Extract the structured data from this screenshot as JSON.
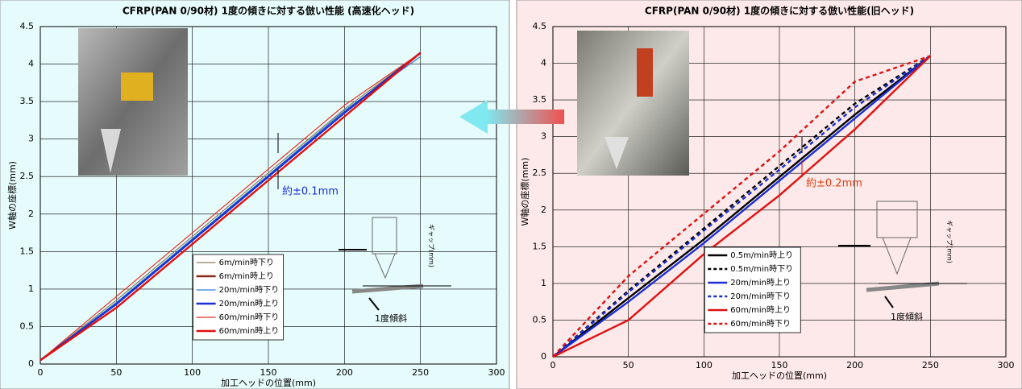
{
  "chart_data": [
    {
      "type": "line",
      "title": "CFRP(PAN 0/90材) 1度の傾きに対する倣い性能 (高速化ヘッド)",
      "ylabel": "W軸の座標(mm)",
      "xlabel": "加工ヘッドの位置(mm)",
      "background": "#e6fbfb",
      "grid": true,
      "legend": "lower center",
      "xlim": [
        0,
        300
      ],
      "xticks": [
        0,
        50,
        100,
        150,
        200,
        250,
        300
      ],
      "ylim": [
        0,
        4.5
      ],
      "yticks": [
        0,
        0.5,
        1,
        1.5,
        2,
        2.5,
        3,
        3.5,
        4,
        4.5
      ],
      "x": [
        0,
        50,
        100,
        150,
        200,
        250
      ],
      "series": [
        {
          "name": "6m/min時下り",
          "color": "#8c7f5a",
          "line_weight": "thin",
          "line_style": "solid",
          "values": [
            0.05,
            0.85,
            1.7,
            2.55,
            3.4,
            4.15
          ]
        },
        {
          "name": "6m/min時上り",
          "color": "#8b2a1a",
          "line_weight": "bold",
          "line_style": "solid",
          "values": [
            0.05,
            0.8,
            1.65,
            2.5,
            3.35,
            4.15
          ]
        },
        {
          "name": "20m/min時下り",
          "color": "#2f7fe0",
          "line_weight": "thin",
          "line_style": "solid",
          "values": [
            0.05,
            0.82,
            1.67,
            2.52,
            3.38,
            4.1
          ]
        },
        {
          "name": "20m/min時上り",
          "color": "#1a2fd0",
          "line_weight": "bold",
          "line_style": "solid",
          "values": [
            0.05,
            0.8,
            1.65,
            2.5,
            3.35,
            4.15
          ]
        },
        {
          "name": "60m/min時下り",
          "color": "#e03020",
          "line_weight": "thin",
          "line_style": "solid",
          "values": [
            0.05,
            0.9,
            1.75,
            2.6,
            3.45,
            4.15
          ]
        },
        {
          "name": "60m/min時上り",
          "color": "#e01010",
          "line_weight": "bold",
          "line_style": "solid",
          "values": [
            0.05,
            0.75,
            1.6,
            2.45,
            3.3,
            4.15
          ]
        }
      ],
      "annotations": [
        "約±0.1mm",
        "ギャップ(mm)",
        "1度傾斜"
      ]
    },
    {
      "type": "line",
      "title": "CFRP(PAN 0/90材) 1度の傾きに対する倣い性能(旧ヘッド)",
      "ylabel": "W軸の座標(mm)",
      "xlabel": "加工ヘッドの位置(mm)",
      "background": "#fde9e9",
      "grid": true,
      "legend": "lower center",
      "xlim": [
        0,
        300
      ],
      "xticks": [
        0,
        50,
        100,
        150,
        200,
        250,
        300
      ],
      "ylim": [
        0,
        4.5
      ],
      "yticks": [
        0,
        0.5,
        1,
        1.5,
        2,
        2.5,
        3,
        3.5,
        4,
        4.5
      ],
      "x": [
        0,
        50,
        100,
        150,
        200,
        250
      ],
      "series": [
        {
          "name": "0.5m/min時上り",
          "color": "#000000",
          "line_weight": "bold",
          "line_style": "solid",
          "values": [
            0,
            0.8,
            1.6,
            2.45,
            3.3,
            4.1
          ]
        },
        {
          "name": "0.5m/min時下り",
          "color": "#000000",
          "line_weight": "bold",
          "line_style": "dashed",
          "values": [
            0,
            0.9,
            1.75,
            2.6,
            3.45,
            4.1
          ]
        },
        {
          "name": "20m/min時上り",
          "color": "#1a2fd0",
          "line_weight": "bold",
          "line_style": "solid",
          "values": [
            0,
            0.75,
            1.55,
            2.4,
            3.25,
            4.1
          ]
        },
        {
          "name": "20m/min時下り",
          "color": "#1a2fd0",
          "line_weight": "bold",
          "line_style": "dashed",
          "values": [
            0,
            0.88,
            1.72,
            2.55,
            3.4,
            4.1
          ]
        },
        {
          "name": "60m/min時上り",
          "color": "#e01010",
          "line_weight": "bold",
          "line_style": "solid",
          "values": [
            0,
            0.5,
            1.4,
            2.2,
            3.1,
            4.1
          ]
        },
        {
          "name": "60m/min時下り",
          "color": "#e01010",
          "line_weight": "bold",
          "line_style": "dashed",
          "values": [
            0,
            1.1,
            1.95,
            2.8,
            3.75,
            4.1
          ]
        }
      ],
      "annotations": [
        "約±0.2mm",
        "ギャップ(mm)",
        "1度傾斜"
      ]
    }
  ]
}
